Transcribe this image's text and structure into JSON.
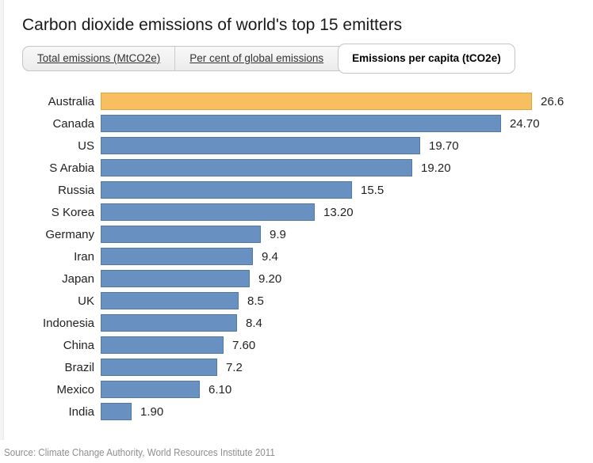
{
  "chart_data": {
    "type": "bar",
    "orientation": "horizontal",
    "title": "Carbon dioxide emissions of world's top 15 emitters",
    "categories": [
      "Australia",
      "Canada",
      "US",
      "S Arabia",
      "Russia",
      "S Korea",
      "Germany",
      "Iran",
      "Japan",
      "UK",
      "Indonesia",
      "China",
      "Brazil",
      "Mexico",
      "India"
    ],
    "values": [
      26.6,
      24.7,
      19.7,
      19.2,
      15.5,
      13.2,
      9.9,
      9.4,
      9.2,
      8.5,
      8.4,
      7.6,
      7.2,
      6.1,
      1.9
    ],
    "value_labels": [
      "26.6",
      "24.70",
      "19.70",
      "19.20",
      "15.5",
      "13.20",
      "9.9",
      "9.4",
      "9.20",
      "8.5",
      "8.4",
      "7.60",
      "7.2",
      "6.10",
      "1.90"
    ],
    "highlight_index": 0,
    "xlim": [
      0,
      26.6
    ],
    "legend": "none",
    "grid": "off",
    "colors": {
      "bar_fill": "#6891c1",
      "bar_border": "#537aa6",
      "highlight_fill": "#f7bf60",
      "highlight_border": "#dfa339"
    }
  },
  "tabs": [
    {
      "label": "Total emissions (MtCO2e)",
      "active": false
    },
    {
      "label": "Per cent of global emissions",
      "active": false
    },
    {
      "label": "Emissions per capita (tCO2e)",
      "active": true
    }
  ],
  "source": {
    "text": "Source: Climate Change Authority, World Resources Institute 2011"
  }
}
